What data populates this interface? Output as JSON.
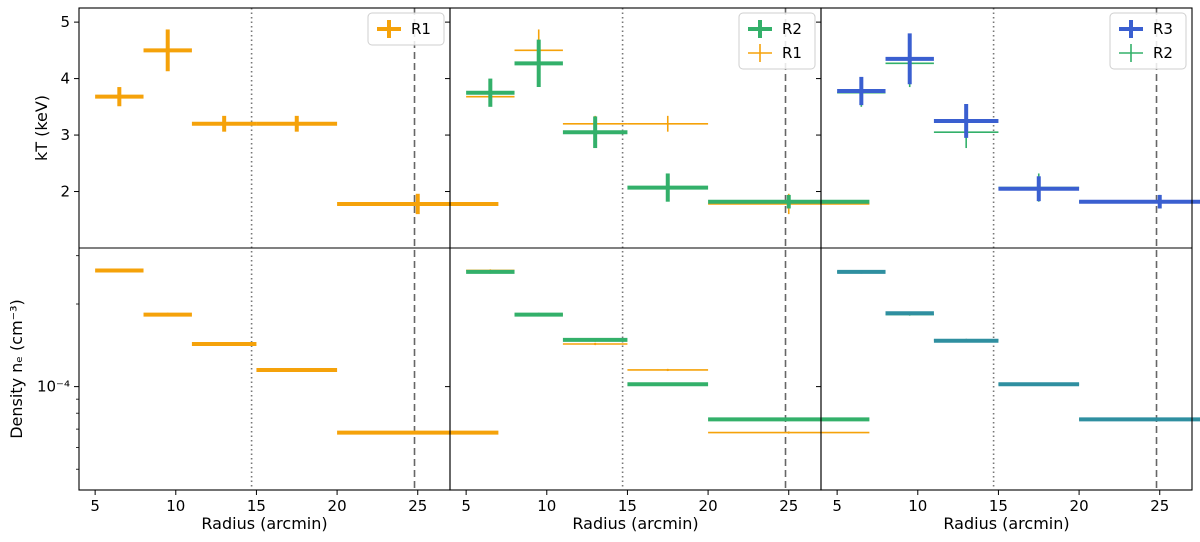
{
  "chart_data": {
    "type": "scatter",
    "layout": "2 rows x 3 columns, shared axes",
    "xlabel": "Radius (arcmin)",
    "ylabel_top": "kT (keV)",
    "ylabel_bottom": "Density nₑ (cm⁻³)",
    "xlim": [
      4,
      27
    ],
    "xticks": [
      "5",
      "10",
      "15",
      "20",
      "25"
    ],
    "top_ylim": [
      1.0,
      5.25
    ],
    "top_yticks": [
      "2",
      "3",
      "4",
      "5"
    ],
    "bottom_yscale": "log",
    "bottom_ylim": [
      4.2e-05,
      0.00032
    ],
    "bottom_ytick_label": "10⁻⁴",
    "bottom_ytick_value": 0.0001,
    "vlines": [
      {
        "x": 14.7,
        "style": "dotted"
      },
      {
        "x": 24.8,
        "style": "dashed"
      }
    ],
    "colors": {
      "R1": "#f5a20a",
      "R2": "#33b06a",
      "R3": "#3a5fd0",
      "R3_density": "#2f8fa0"
    },
    "panels": [
      {
        "legend": [
          "R1"
        ],
        "legend_position": "upper right",
        "series": [
          {
            "name": "R1",
            "style": "thick",
            "color": "#f5a20a",
            "kT": [
              {
                "x": 6.5,
                "xerr": 1.5,
                "y": 3.68,
                "yerr": 0.17
              },
              {
                "x": 9.5,
                "xerr": 1.5,
                "y": 4.5,
                "yerr": 0.37
              },
              {
                "x": 13.0,
                "xerr": 2.0,
                "y": 3.2,
                "yerr": 0.14
              },
              {
                "x": 17.5,
                "xerr": 2.5,
                "y": 3.2,
                "yerr": 0.14
              },
              {
                "x": 25.0,
                "xerr": 5.0,
                "y": 1.78,
                "yerr": 0.18
              }
            ],
            "density": [
              {
                "x": 6.5,
                "xerr": 1.5,
                "y": 0.000265
              },
              {
                "x": 9.5,
                "xerr": 1.5,
                "y": 0.000183
              },
              {
                "x": 13.0,
                "xerr": 2.0,
                "y": 0.000143
              },
              {
                "x": 17.5,
                "xerr": 2.5,
                "y": 0.000115
              },
              {
                "x": 25.0,
                "xerr": 5.0,
                "y": 6.8e-05
              }
            ]
          }
        ]
      },
      {
        "legend": [
          "R2",
          "R1"
        ],
        "legend_position": "upper right",
        "series": [
          {
            "name": "R2",
            "style": "thick",
            "color": "#33b06a",
            "kT": [
              {
                "x": 6.5,
                "xerr": 1.5,
                "y": 3.75,
                "yerr": 0.25
              },
              {
                "x": 9.5,
                "xerr": 1.5,
                "y": 4.27,
                "yerr": 0.42
              },
              {
                "x": 13.0,
                "xerr": 2.0,
                "y": 3.05,
                "yerr": 0.28
              },
              {
                "x": 17.5,
                "xerr": 2.5,
                "y": 2.07,
                "yerr": 0.25
              },
              {
                "x": 25.0,
                "xerr": 5.0,
                "y": 1.82,
                "yerr": 0.12
              }
            ],
            "density": [
              {
                "x": 6.5,
                "xerr": 1.5,
                "y": 0.000262
              },
              {
                "x": 9.5,
                "xerr": 1.5,
                "y": 0.000183
              },
              {
                "x": 13.0,
                "xerr": 2.0,
                "y": 0.000148
              },
              {
                "x": 17.5,
                "xerr": 2.5,
                "y": 0.000102
              },
              {
                "x": 25.0,
                "xerr": 5.0,
                "y": 7.6e-05
              }
            ]
          },
          {
            "name": "R1",
            "style": "thin",
            "color": "#f5a20a",
            "kT": [
              {
                "x": 6.5,
                "xerr": 1.5,
                "y": 3.68,
                "yerr": 0.17
              },
              {
                "x": 9.5,
                "xerr": 1.5,
                "y": 4.5,
                "yerr": 0.37
              },
              {
                "x": 13.0,
                "xerr": 2.0,
                "y": 3.2,
                "yerr": 0.14
              },
              {
                "x": 17.5,
                "xerr": 2.5,
                "y": 3.2,
                "yerr": 0.14
              },
              {
                "x": 25.0,
                "xerr": 5.0,
                "y": 1.78,
                "yerr": 0.18
              }
            ],
            "density": [
              {
                "x": 6.5,
                "xerr": 1.5,
                "y": 0.000265
              },
              {
                "x": 9.5,
                "xerr": 1.5,
                "y": 0.000183
              },
              {
                "x": 13.0,
                "xerr": 2.0,
                "y": 0.000143
              },
              {
                "x": 17.5,
                "xerr": 2.5,
                "y": 0.000115
              },
              {
                "x": 25.0,
                "xerr": 5.0,
                "y": 6.8e-05
              }
            ]
          }
        ]
      },
      {
        "legend": [
          "R3",
          "R2"
        ],
        "legend_position": "upper right",
        "series": [
          {
            "name": "R3",
            "style": "thick",
            "color": "#3a5fd0",
            "density_color": "#2f8fa0",
            "kT": [
              {
                "x": 6.5,
                "xerr": 1.5,
                "y": 3.78,
                "yerr": 0.25
              },
              {
                "x": 9.5,
                "xerr": 1.5,
                "y": 4.35,
                "yerr": 0.45
              },
              {
                "x": 13.0,
                "xerr": 2.0,
                "y": 3.25,
                "yerr": 0.3
              },
              {
                "x": 17.5,
                "xerr": 2.5,
                "y": 2.05,
                "yerr": 0.22
              },
              {
                "x": 25.0,
                "xerr": 5.0,
                "y": 1.82,
                "yerr": 0.12
              }
            ],
            "density": [
              {
                "x": 6.5,
                "xerr": 1.5,
                "y": 0.000262
              },
              {
                "x": 9.5,
                "xerr": 1.5,
                "y": 0.000185
              },
              {
                "x": 13.0,
                "xerr": 2.0,
                "y": 0.000147
              },
              {
                "x": 17.5,
                "xerr": 2.5,
                "y": 0.000102
              },
              {
                "x": 25.0,
                "xerr": 5.0,
                "y": 7.6e-05
              }
            ]
          },
          {
            "name": "R2",
            "style": "thin",
            "color": "#33b06a",
            "kT": [
              {
                "x": 6.5,
                "xerr": 1.5,
                "y": 3.75,
                "yerr": 0.25
              },
              {
                "x": 9.5,
                "xerr": 1.5,
                "y": 4.27,
                "yerr": 0.42
              },
              {
                "x": 13.0,
                "xerr": 2.0,
                "y": 3.05,
                "yerr": 0.28
              },
              {
                "x": 17.5,
                "xerr": 2.5,
                "y": 2.07,
                "yerr": 0.25
              },
              {
                "x": 25.0,
                "xerr": 5.0,
                "y": 1.82,
                "yerr": 0.12
              }
            ],
            "density": [
              {
                "x": 6.5,
                "xerr": 1.5,
                "y": 0.000262
              },
              {
                "x": 9.5,
                "xerr": 1.5,
                "y": 0.000183
              },
              {
                "x": 13.0,
                "xerr": 2.0,
                "y": 0.000148
              },
              {
                "x": 17.5,
                "xerr": 2.5,
                "y": 0.000102
              },
              {
                "x": 25.0,
                "xerr": 5.0,
                "y": 7.6e-05
              }
            ]
          }
        ]
      }
    ]
  }
}
